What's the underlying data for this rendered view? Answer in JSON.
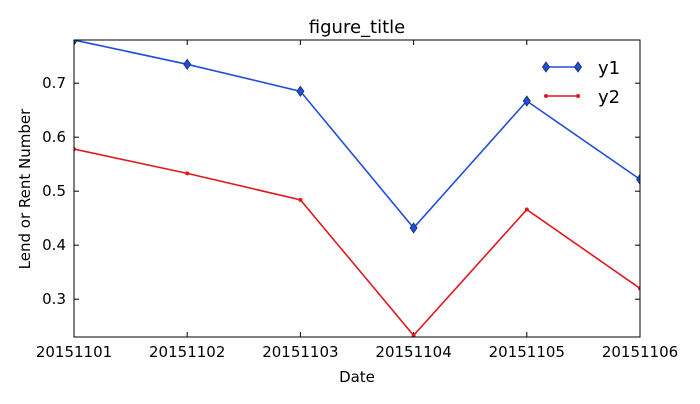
{
  "chart_data": {
    "type": "line",
    "title": "figure_title",
    "xlabel": "Date",
    "ylabel": "Lend or Rent Number",
    "categories": [
      "20151101",
      "20151102",
      "20151103",
      "20151104",
      "20151105",
      "20151106"
    ],
    "yticks": [
      "0.3",
      "0.4",
      "0.5",
      "0.6",
      "0.7"
    ],
    "ylim": [
      0.23,
      0.78
    ],
    "grid": false,
    "legend_position": "top-right",
    "series": [
      {
        "name": "y1",
        "color": "#1f4fd6",
        "marker": "diamond",
        "values": [
          0.78,
          0.735,
          0.685,
          0.432,
          0.667,
          0.522
        ]
      },
      {
        "name": "y2",
        "color": "#e0191e",
        "marker": "point",
        "values": [
          0.578,
          0.533,
          0.484,
          0.233,
          0.466,
          0.32
        ]
      }
    ]
  }
}
